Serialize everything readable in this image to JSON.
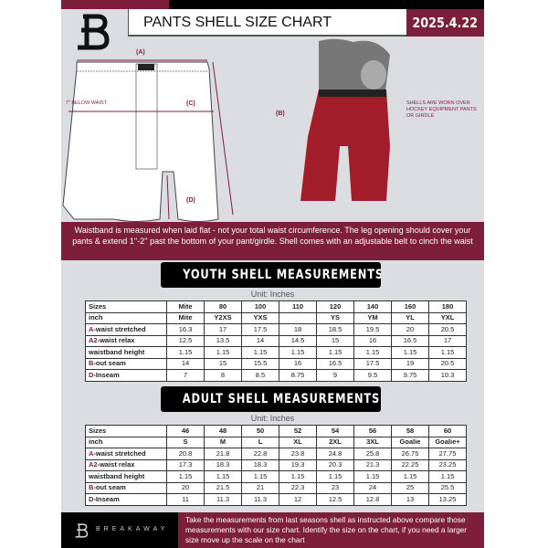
{
  "header": {
    "title": "PANTS SHELL SIZE CHART",
    "date": "2025.4.22",
    "logo": "B"
  },
  "diagram": {
    "label_a": "(A)",
    "label_b": "(B)",
    "label_c": "(C)",
    "label_d": "(D)",
    "c_note": "7'' BELOW WAIST",
    "side_note": "SHELLS ARE WORN OVER HOCKEY EQUIPMENT PANTS OR GIRDLE"
  },
  "banner": "Waistband is measured when laid flat - not your total waist circumference. The leg opening should cover your pants & extend 1''-2'' past the bottom of your pant/girdle. Shell comes with an adjustable belt to cinch the waist",
  "youth": {
    "title": "YOUTH SHELL MEASUREMENTS",
    "unit": "Unit: Inches",
    "rows": [
      [
        "Sizes",
        "Mite",
        "80",
        "100",
        "110",
        "120",
        "140",
        "160",
        "180"
      ],
      [
        "inch",
        "Mite",
        "Y2XS",
        "YXS",
        "",
        "YS",
        "YM",
        "YL",
        "YXL"
      ],
      [
        "A",
        "-waist stretched",
        "16.3",
        "17",
        "17.5",
        "18",
        "18.5",
        "19.5",
        "20",
        "20.5"
      ],
      [
        "A2",
        "-waist relax",
        "12.5",
        "13.5",
        "14",
        "14.5",
        "15",
        "16",
        "16.5",
        "17"
      ],
      [
        "",
        "waistband height",
        "1.15",
        "1.15",
        "1.15",
        "1.15",
        "1.15",
        "1.15",
        "1.15",
        "1.15"
      ],
      [
        "B",
        "-out seam",
        "14",
        "15",
        "15.5",
        "16",
        "16.5",
        "17.5",
        "19",
        "20.5"
      ],
      [
        "D",
        "-Inseam",
        "7",
        "8",
        "8.5",
        "8.75",
        "9",
        "9.5",
        "9.75",
        "10.3"
      ]
    ]
  },
  "adult": {
    "title": "ADULT SHELL MEASUREMENTS",
    "unit": "Unit: Inches",
    "rows": [
      [
        "Sizes",
        "46",
        "48",
        "50",
        "52",
        "54",
        "56",
        "58",
        "60"
      ],
      [
        "inch",
        "S",
        "M",
        "L",
        "XL",
        "2XL",
        "3XL",
        "Goalie",
        "Goalie+"
      ],
      [
        "A",
        "-waist stretched",
        "20.8",
        "21.8",
        "22.8",
        "23.8",
        "24.8",
        "25.8",
        "26.75",
        "27.75"
      ],
      [
        "A2",
        "-waist relax",
        "17.3",
        "18.3",
        "18.3",
        "19.3",
        "20.3",
        "21.3",
        "22.25",
        "23.25"
      ],
      [
        "",
        "waistband height",
        "1.15",
        "1.15",
        "1.15",
        "1.15",
        "1.15",
        "1.15",
        "1.15",
        "1.15"
      ],
      [
        "B",
        "-out seam",
        "20",
        "21.5",
        "21",
        "22.3",
        "23",
        "24",
        "25",
        "25.5"
      ],
      [
        "D",
        "-Inseam",
        "11",
        "11.3",
        "11.3",
        "12",
        "12.5",
        "12.8",
        "13",
        "13.25"
      ]
    ]
  },
  "footer": {
    "brand": "BREAKAWAY",
    "text": "Take the measurements from last seasons shell as instructed above compare those measurements  with our size chart. Identify the size on the chart, if you need a larger size move up the scale on the chart"
  },
  "colors": {
    "accent": "#7d1f3c",
    "background": "#dcdde1"
  }
}
